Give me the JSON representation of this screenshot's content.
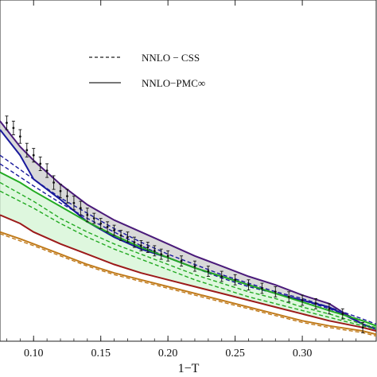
{
  "chart_data": {
    "type": "line",
    "xlabel": "1−T",
    "xlim": [
      0.075,
      0.355
    ],
    "xticks": [
      0.1,
      0.15,
      0.2,
      0.25,
      0.3
    ],
    "xtick_labels": [
      "0.10",
      "0.15",
      "0.20",
      "0.25",
      "0.30"
    ],
    "ylim": [
      0,
      1
    ],
    "legend": [
      {
        "label": "NNLO − CSS",
        "style": "dashed",
        "color": "#444444"
      },
      {
        "label": "NNLO−PMC∞",
        "style": "solid",
        "color": "#777777"
      }
    ],
    "legend_position": "top-center",
    "series": [
      {
        "color": "#4a1a7a",
        "style": "solid",
        "x": [
          0.075,
          0.09,
          0.1,
          0.12,
          0.14,
          0.16,
          0.18,
          0.2,
          0.22,
          0.24,
          0.26,
          0.28,
          0.3,
          0.32,
          0.33,
          0.345,
          0.355
        ],
        "y": [
          0.645,
          0.57,
          0.53,
          0.46,
          0.4,
          0.355,
          0.32,
          0.285,
          0.25,
          0.22,
          0.19,
          0.165,
          0.135,
          0.11,
          0.085,
          0.05,
          0.035
        ]
      },
      {
        "color": "#1a1a9c",
        "style": "solid",
        "x": [
          0.075,
          0.09,
          0.1,
          0.12,
          0.14,
          0.16,
          0.18,
          0.2,
          0.22,
          0.24,
          0.26,
          0.28,
          0.3,
          0.32,
          0.33,
          0.345,
          0.355
        ],
        "y": [
          0.62,
          0.545,
          0.475,
          0.415,
          0.35,
          0.305,
          0.27,
          0.245,
          0.215,
          0.19,
          0.165,
          0.14,
          0.12,
          0.1,
          0.08,
          0.05,
          0.035
        ]
      },
      {
        "color": "#1a1a9c",
        "style": "dashed",
        "x": [
          0.075,
          0.1,
          0.12,
          0.14,
          0.16,
          0.18,
          0.2,
          0.22,
          0.24,
          0.26,
          0.28,
          0.3,
          0.32,
          0.345,
          0.355
        ],
        "y": [
          0.545,
          0.475,
          0.42,
          0.375,
          0.33,
          0.29,
          0.255,
          0.225,
          0.195,
          0.17,
          0.145,
          0.125,
          0.1,
          0.065,
          0.05
        ]
      },
      {
        "color": "#1a1a9c",
        "style": "dashed",
        "x": [
          0.075,
          0.1,
          0.12,
          0.14,
          0.16,
          0.18,
          0.2,
          0.22,
          0.24,
          0.26,
          0.28,
          0.3,
          0.32,
          0.345,
          0.355
        ],
        "y": [
          0.52,
          0.455,
          0.405,
          0.36,
          0.32,
          0.28,
          0.245,
          0.215,
          0.185,
          0.16,
          0.14,
          0.12,
          0.095,
          0.06,
          0.045
        ]
      },
      {
        "color": "#22aa22",
        "style": "solid",
        "x": [
          0.075,
          0.09,
          0.1,
          0.12,
          0.14,
          0.16,
          0.18,
          0.2,
          0.22,
          0.24,
          0.26,
          0.28,
          0.3,
          0.32,
          0.345,
          0.355
        ],
        "y": [
          0.495,
          0.465,
          0.44,
          0.395,
          0.35,
          0.31,
          0.275,
          0.245,
          0.215,
          0.19,
          0.165,
          0.14,
          0.115,
          0.09,
          0.06,
          0.045
        ]
      },
      {
        "color": "#22aa22",
        "style": "dashed",
        "x": [
          0.075,
          0.1,
          0.12,
          0.14,
          0.16,
          0.18,
          0.2,
          0.22,
          0.24,
          0.26,
          0.28,
          0.3,
          0.32,
          0.345,
          0.355
        ],
        "y": [
          0.465,
          0.41,
          0.36,
          0.32,
          0.285,
          0.255,
          0.225,
          0.195,
          0.17,
          0.145,
          0.125,
          0.1,
          0.08,
          0.05,
          0.04
        ]
      },
      {
        "color": "#22aa22",
        "style": "dashed",
        "x": [
          0.075,
          0.1,
          0.12,
          0.14,
          0.16,
          0.18,
          0.2,
          0.22,
          0.24,
          0.26,
          0.28,
          0.3,
          0.32,
          0.345,
          0.355
        ],
        "y": [
          0.44,
          0.39,
          0.345,
          0.305,
          0.27,
          0.24,
          0.21,
          0.18,
          0.155,
          0.13,
          0.11,
          0.09,
          0.07,
          0.045,
          0.035
        ]
      },
      {
        "color": "#9c1a1a",
        "style": "solid",
        "x": [
          0.075,
          0.09,
          0.1,
          0.12,
          0.14,
          0.16,
          0.18,
          0.2,
          0.22,
          0.24,
          0.26,
          0.28,
          0.3,
          0.32,
          0.345,
          0.355
        ],
        "y": [
          0.37,
          0.345,
          0.32,
          0.285,
          0.255,
          0.225,
          0.2,
          0.18,
          0.16,
          0.14,
          0.12,
          0.1,
          0.08,
          0.06,
          0.04,
          0.03
        ]
      },
      {
        "color": "#c07a1a",
        "style": "solid",
        "x": [
          0.075,
          0.09,
          0.1,
          0.12,
          0.14,
          0.16,
          0.18,
          0.2,
          0.22,
          0.24,
          0.26,
          0.28,
          0.3,
          0.32,
          0.345,
          0.355
        ],
        "y": [
          0.32,
          0.3,
          0.285,
          0.255,
          0.225,
          0.2,
          0.18,
          0.16,
          0.14,
          0.12,
          0.1,
          0.08,
          0.06,
          0.045,
          0.03,
          0.02
        ]
      },
      {
        "color": "#c07a1a",
        "style": "dashed",
        "x": [
          0.075,
          0.1,
          0.12,
          0.14,
          0.16,
          0.18,
          0.2,
          0.22,
          0.24,
          0.26,
          0.28,
          0.3,
          0.32,
          0.345,
          0.355
        ],
        "y": [
          0.315,
          0.28,
          0.25,
          0.22,
          0.195,
          0.175,
          0.155,
          0.135,
          0.115,
          0.095,
          0.075,
          0.055,
          0.04,
          0.025,
          0.015
        ]
      }
    ],
    "bands": [
      {
        "color": "#cfcfcf",
        "upper_series": 0,
        "lower_series": 1
      },
      {
        "color": "#d6f5d6",
        "upper_series": 4,
        "lower_series": 7
      }
    ],
    "data_points": {
      "x": [
        0.08,
        0.085,
        0.09,
        0.095,
        0.1,
        0.105,
        0.11,
        0.115,
        0.12,
        0.125,
        0.13,
        0.135,
        0.14,
        0.145,
        0.15,
        0.155,
        0.16,
        0.165,
        0.17,
        0.175,
        0.18,
        0.185,
        0.19,
        0.195,
        0.2,
        0.21,
        0.22,
        0.23,
        0.24,
        0.25,
        0.26,
        0.27,
        0.28,
        0.29,
        0.3,
        0.31,
        0.32,
        0.33,
        0.345
      ],
      "y": [
        0.64,
        0.625,
        0.6,
        0.56,
        0.545,
        0.52,
        0.5,
        0.465,
        0.44,
        0.425,
        0.405,
        0.39,
        0.37,
        0.36,
        0.345,
        0.335,
        0.325,
        0.31,
        0.305,
        0.29,
        0.28,
        0.275,
        0.265,
        0.255,
        0.25,
        0.235,
        0.22,
        0.205,
        0.19,
        0.18,
        0.165,
        0.155,
        0.145,
        0.13,
        0.12,
        0.11,
        0.095,
        0.08,
        0.04
      ],
      "err": [
        0.02,
        0.02,
        0.02,
        0.02,
        0.02,
        0.02,
        0.02,
        0.02,
        0.02,
        0.02,
        0.02,
        0.02,
        0.02,
        0.015,
        0.015,
        0.015,
        0.015,
        0.015,
        0.015,
        0.015,
        0.015,
        0.015,
        0.015,
        0.015,
        0.015,
        0.015,
        0.015,
        0.015,
        0.015,
        0.015,
        0.015,
        0.015,
        0.015,
        0.015,
        0.015,
        0.015,
        0.015,
        0.015,
        0.015
      ]
    }
  }
}
